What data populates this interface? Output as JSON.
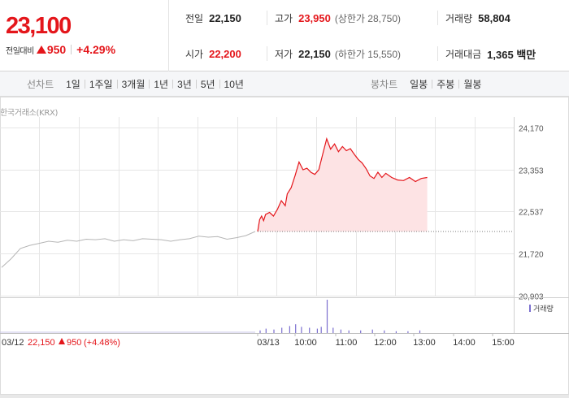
{
  "quote": {
    "price": "23,100",
    "change_label": "전일대비",
    "change_amount": "950",
    "change_percent": "+4.29%",
    "stats": {
      "prev_close": {
        "label": "전일",
        "value": "22,150"
      },
      "high": {
        "label": "고가",
        "value": "23,950",
        "sub": "(상한가 28,750)"
      },
      "volume": {
        "label": "거래량",
        "value": "58,804"
      },
      "open": {
        "label": "시가",
        "value": "22,200"
      },
      "low": {
        "label": "저가",
        "value": "22,150",
        "sub": "(하한가 15,550)"
      },
      "trade_value": {
        "label": "거래대금",
        "value": "1,365 백만"
      }
    }
  },
  "period_bar": {
    "line_title": "선차트",
    "line_periods": [
      "1일",
      "1주일",
      "3개월",
      "1년",
      "3년",
      "5년",
      "10년"
    ],
    "active_period": "1일",
    "candle_title": "봉차트",
    "candle_periods": [
      "일봉",
      "주봉",
      "월봉"
    ]
  },
  "colors": {
    "up": "#e4161b",
    "prev_day_line": "#b5b5b5",
    "area_fill": "#fde3e4",
    "volume": "#7b6fcf",
    "grid": "#e6e6e6"
  },
  "chart_data": {
    "type": "line",
    "source_label": "한국거래소(KRX)",
    "y_ticks": [
      "24,170",
      "23,353",
      "22,537",
      "21,720",
      "20,903"
    ],
    "y_tick_values": [
      24170,
      23353,
      22537,
      21720,
      20903
    ],
    "ylim": [
      20903,
      24170
    ],
    "previous_close": 22150,
    "x_tick_labels": [
      "03/13",
      "10:00",
      "11:00",
      "12:00",
      "13:00",
      "14:00",
      "15:00"
    ],
    "prev_day": {
      "date": "03/12",
      "close": "22,150",
      "change": "950",
      "change_percent": "(+4.48%)",
      "approx_points": [
        21450,
        21620,
        21820,
        21880,
        21920,
        21960,
        21940,
        21980,
        21960,
        22000,
        21990,
        22010,
        21960,
        21990,
        21970,
        22010,
        22000,
        21990,
        21960,
        21990,
        22010,
        22060,
        22040,
        22050,
        22000,
        22030,
        22070,
        22150
      ]
    },
    "today": {
      "date": "03/13",
      "approx_points": [
        [
          9.0,
          22150
        ],
        [
          9.05,
          22380
        ],
        [
          9.1,
          22450
        ],
        [
          9.15,
          22360
        ],
        [
          9.2,
          22480
        ],
        [
          9.3,
          22520
        ],
        [
          9.4,
          22450
        ],
        [
          9.5,
          22580
        ],
        [
          9.6,
          22750
        ],
        [
          9.7,
          22650
        ],
        [
          9.75,
          22880
        ],
        [
          9.85,
          23000
        ],
        [
          9.95,
          23240
        ],
        [
          10.05,
          23500
        ],
        [
          10.15,
          23350
        ],
        [
          10.25,
          23380
        ],
        [
          10.35,
          23300
        ],
        [
          10.45,
          23260
        ],
        [
          10.55,
          23350
        ],
        [
          10.65,
          23650
        ],
        [
          10.75,
          23950
        ],
        [
          10.85,
          23750
        ],
        [
          10.95,
          23850
        ],
        [
          11.05,
          23700
        ],
        [
          11.15,
          23800
        ],
        [
          11.25,
          23720
        ],
        [
          11.35,
          23760
        ],
        [
          11.45,
          23650
        ],
        [
          11.55,
          23550
        ],
        [
          11.65,
          23480
        ],
        [
          11.75,
          23370
        ],
        [
          11.85,
          23230
        ],
        [
          11.95,
          23180
        ],
        [
          12.05,
          23300
        ],
        [
          12.15,
          23200
        ],
        [
          12.25,
          23280
        ],
        [
          12.4,
          23200
        ],
        [
          12.55,
          23150
        ],
        [
          12.7,
          23140
        ],
        [
          12.85,
          23200
        ],
        [
          13.0,
          23120
        ],
        [
          13.15,
          23180
        ],
        [
          13.3,
          23200
        ]
      ]
    },
    "volume_label": "거래량",
    "volume_approx": [
      [
        9.05,
        3
      ],
      [
        9.2,
        5
      ],
      [
        9.4,
        4
      ],
      [
        9.6,
        6
      ],
      [
        9.8,
        8
      ],
      [
        9.95,
        10
      ],
      [
        10.1,
        7
      ],
      [
        10.3,
        6
      ],
      [
        10.5,
        5
      ],
      [
        10.6,
        7
      ],
      [
        10.75,
        38
      ],
      [
        10.9,
        6
      ],
      [
        11.1,
        4
      ],
      [
        11.3,
        3
      ],
      [
        11.6,
        3
      ],
      [
        11.9,
        4
      ],
      [
        12.2,
        3
      ],
      [
        12.5,
        2
      ],
      [
        12.8,
        2
      ],
      [
        13.1,
        3
      ]
    ]
  }
}
